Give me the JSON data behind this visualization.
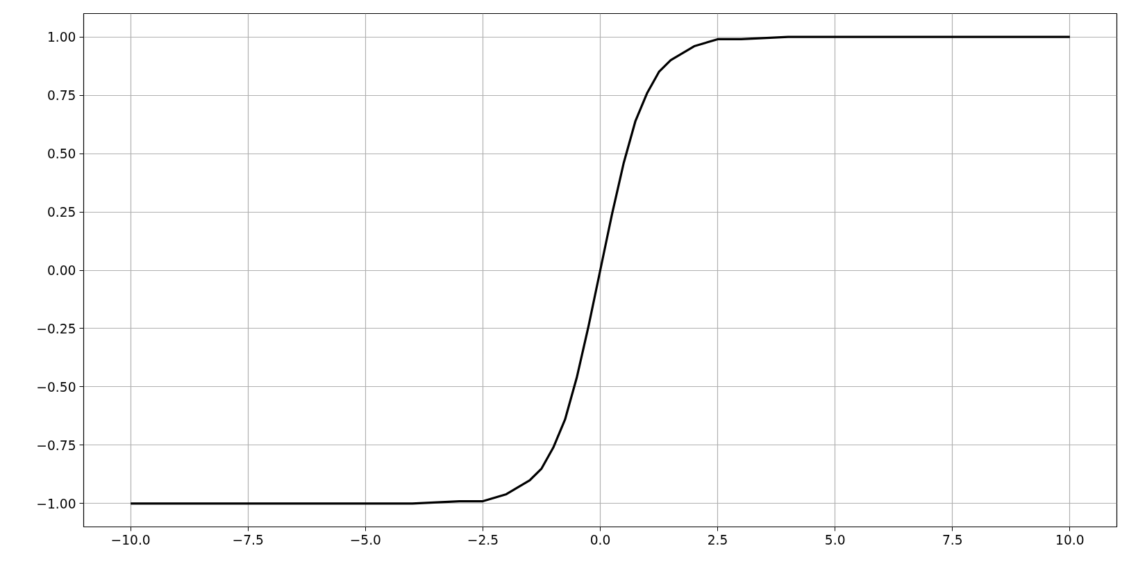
{
  "chart_data": {
    "type": "line",
    "x": [
      -10,
      -5,
      -4,
      -3,
      -2.5,
      -2,
      -1.5,
      -1.25,
      -1,
      -0.75,
      -0.5,
      -0.25,
      0,
      0.25,
      0.5,
      0.75,
      1,
      1.25,
      1.5,
      2,
      2.5,
      3,
      4,
      5,
      10
    ],
    "series": [
      {
        "color": "#000000",
        "values": [
          -1.0,
          -1.0,
          -1.0,
          -0.99,
          -0.99,
          -0.96,
          -0.9,
          -0.85,
          -0.76,
          -0.64,
          -0.46,
          -0.24,
          0.0,
          0.24,
          0.46,
          0.64,
          0.76,
          0.85,
          0.9,
          0.96,
          0.99,
          0.99,
          1.0,
          1.0,
          1.0
        ]
      }
    ],
    "xlim": [
      -11,
      11
    ],
    "ylim": [
      -1.1,
      1.1
    ],
    "xticks": [
      {
        "value": -10,
        "label": "−10.0"
      },
      {
        "value": -7.5,
        "label": "−7.5"
      },
      {
        "value": -5,
        "label": "−5.0"
      },
      {
        "value": -2.5,
        "label": "−2.5"
      },
      {
        "value": 0,
        "label": "0.0"
      },
      {
        "value": 2.5,
        "label": "2.5"
      },
      {
        "value": 5,
        "label": "5.0"
      },
      {
        "value": 7.5,
        "label": "7.5"
      },
      {
        "value": 10,
        "label": "10.0"
      }
    ],
    "yticks": [
      {
        "value": -1,
        "label": "−1.00"
      },
      {
        "value": -0.75,
        "label": "−0.75"
      },
      {
        "value": -0.5,
        "label": "−0.50"
      },
      {
        "value": -0.25,
        "label": "−0.25"
      },
      {
        "value": 0,
        "label": "0.00"
      },
      {
        "value": 0.25,
        "label": "0.25"
      },
      {
        "value": 0.5,
        "label": "0.50"
      },
      {
        "value": 0.75,
        "label": "0.75"
      },
      {
        "value": 1,
        "label": "1.00"
      }
    ],
    "grid": true,
    "line_style": "solid"
  }
}
